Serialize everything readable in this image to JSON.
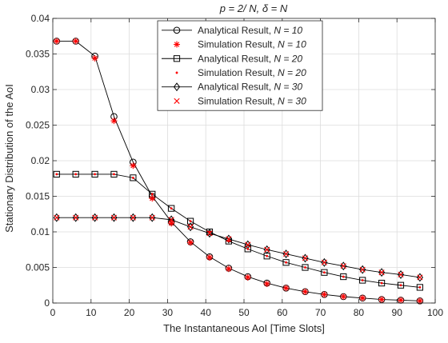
{
  "chart_data": {
    "type": "line",
    "title": "p = 2/ N, δ = N",
    "xlabel": "The Instantaneous AoI [Time Slots]",
    "ylabel": "Stationary Distribution of the AoI",
    "xlim": [
      0,
      100
    ],
    "ylim": [
      0,
      0.04
    ],
    "xticks": [
      "0",
      "10",
      "20",
      "30",
      "40",
      "50",
      "60",
      "70",
      "80",
      "90",
      "100"
    ],
    "yticks": [
      "0",
      "0.005",
      "0.01",
      "0.015",
      "0.02",
      "0.025",
      "0.03",
      "0.035",
      "0.04"
    ],
    "grid": true,
    "legend_position": "top-center",
    "x": [
      1,
      6,
      11,
      16,
      21,
      26,
      31,
      36,
      41,
      46,
      51,
      56,
      61,
      66,
      71,
      76,
      81,
      86,
      91,
      96
    ],
    "series": [
      {
        "name": "Analytical Result,  N = 10",
        "label_prefix": "Analytical Result,  ",
        "label_param": "N = 10",
        "kind": "line",
        "marker": "circle",
        "color": "#000000",
        "values": [
          0.0368,
          0.0368,
          0.0347,
          0.0262,
          0.0198,
          0.015,
          0.0114,
          0.0086,
          0.0065,
          0.0049,
          0.0037,
          0.0028,
          0.0021,
          0.0016,
          0.0012,
          0.0009,
          0.0007,
          0.0005,
          0.0004,
          0.0003
        ]
      },
      {
        "name": "Simulation Result,  N = 10",
        "label_prefix": "Simulation Result,  ",
        "label_param": "N = 10",
        "kind": "marker",
        "marker": "asterisk",
        "color": "#ff0000",
        "values": [
          0.0368,
          0.0368,
          0.0344,
          0.0256,
          0.0193,
          0.0147,
          0.0112,
          0.0085,
          0.0064,
          0.0048,
          0.0036,
          0.0027,
          0.0021,
          0.0016,
          0.0012,
          0.0009,
          0.0007,
          0.0005,
          0.0004,
          0.0003
        ]
      },
      {
        "name": "Analytical Result,  N = 20",
        "label_prefix": "Analytical Result,  ",
        "label_param": "N = 20",
        "kind": "line",
        "marker": "square",
        "color": "#000000",
        "values": [
          0.0181,
          0.0181,
          0.0181,
          0.0181,
          0.0176,
          0.0153,
          0.0133,
          0.0115,
          0.01,
          0.0087,
          0.0076,
          0.0066,
          0.0057,
          0.005,
          0.0043,
          0.0037,
          0.0032,
          0.0028,
          0.0025,
          0.0022
        ]
      },
      {
        "name": "Simulation Result,  N = 20",
        "label_prefix": "Simulation Result,  ",
        "label_param": "N = 20",
        "kind": "marker",
        "marker": "dot",
        "color": "#ff0000",
        "values": [
          0.0181,
          0.0181,
          0.0181,
          0.0181,
          0.0176,
          0.0153,
          0.0133,
          0.0115,
          0.01,
          0.0087,
          0.0076,
          0.0066,
          0.0057,
          0.005,
          0.0043,
          0.0037,
          0.0032,
          0.0028,
          0.0025,
          0.0022
        ]
      },
      {
        "name": "Analytical Result,  N = 30",
        "label_prefix": "Analytical Result,  ",
        "label_param": "N = 30",
        "kind": "line",
        "marker": "diamond",
        "color": "#000000",
        "values": [
          0.012,
          0.012,
          0.012,
          0.012,
          0.012,
          0.012,
          0.0117,
          0.0107,
          0.0098,
          0.009,
          0.0082,
          0.0075,
          0.0069,
          0.0063,
          0.0057,
          0.0052,
          0.0047,
          0.0043,
          0.004,
          0.0036
        ]
      },
      {
        "name": "Simulation Result,  N = 30",
        "label_prefix": "Simulation Result,  ",
        "label_param": "N = 30",
        "kind": "marker",
        "marker": "cross",
        "color": "#ff0000",
        "values": [
          0.012,
          0.012,
          0.012,
          0.012,
          0.012,
          0.012,
          0.0117,
          0.0107,
          0.0098,
          0.009,
          0.0082,
          0.0075,
          0.0069,
          0.0063,
          0.0057,
          0.0052,
          0.0047,
          0.0043,
          0.004,
          0.0036
        ]
      }
    ]
  }
}
